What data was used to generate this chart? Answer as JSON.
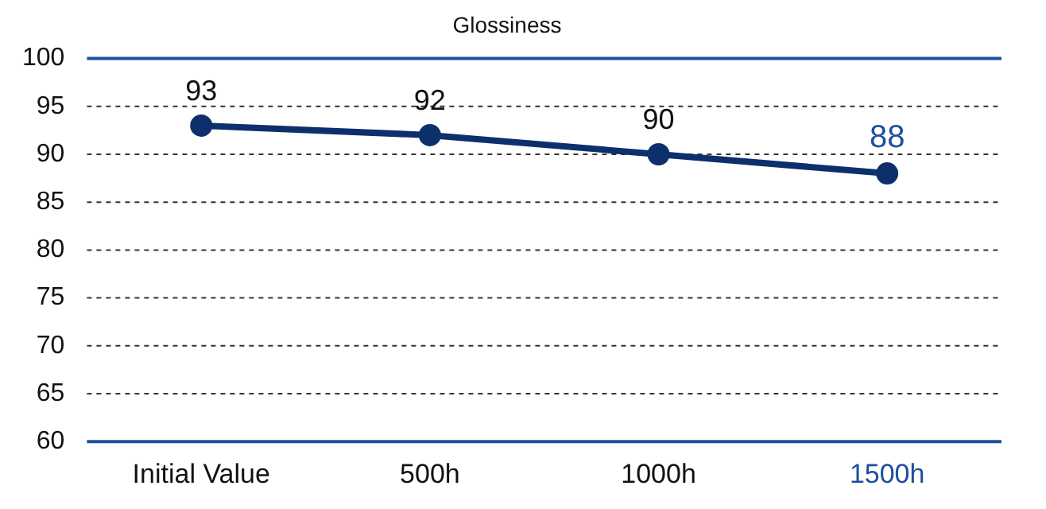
{
  "chart_data": {
    "type": "line",
    "title": "Glossiness",
    "categories": [
      "Initial Value",
      "500h",
      "1000h",
      "1500h"
    ],
    "series": [
      {
        "color": "#0d2f6b",
        "values": [
          93,
          92,
          90,
          88
        ]
      }
    ],
    "ylim": [
      60,
      100
    ],
    "yticks": [
      60,
      65,
      70,
      75,
      80,
      85,
      90,
      95,
      100
    ],
    "grid": "y",
    "legend": false,
    "marker": "circle",
    "line_style": "solid",
    "data_labels": true
  }
}
